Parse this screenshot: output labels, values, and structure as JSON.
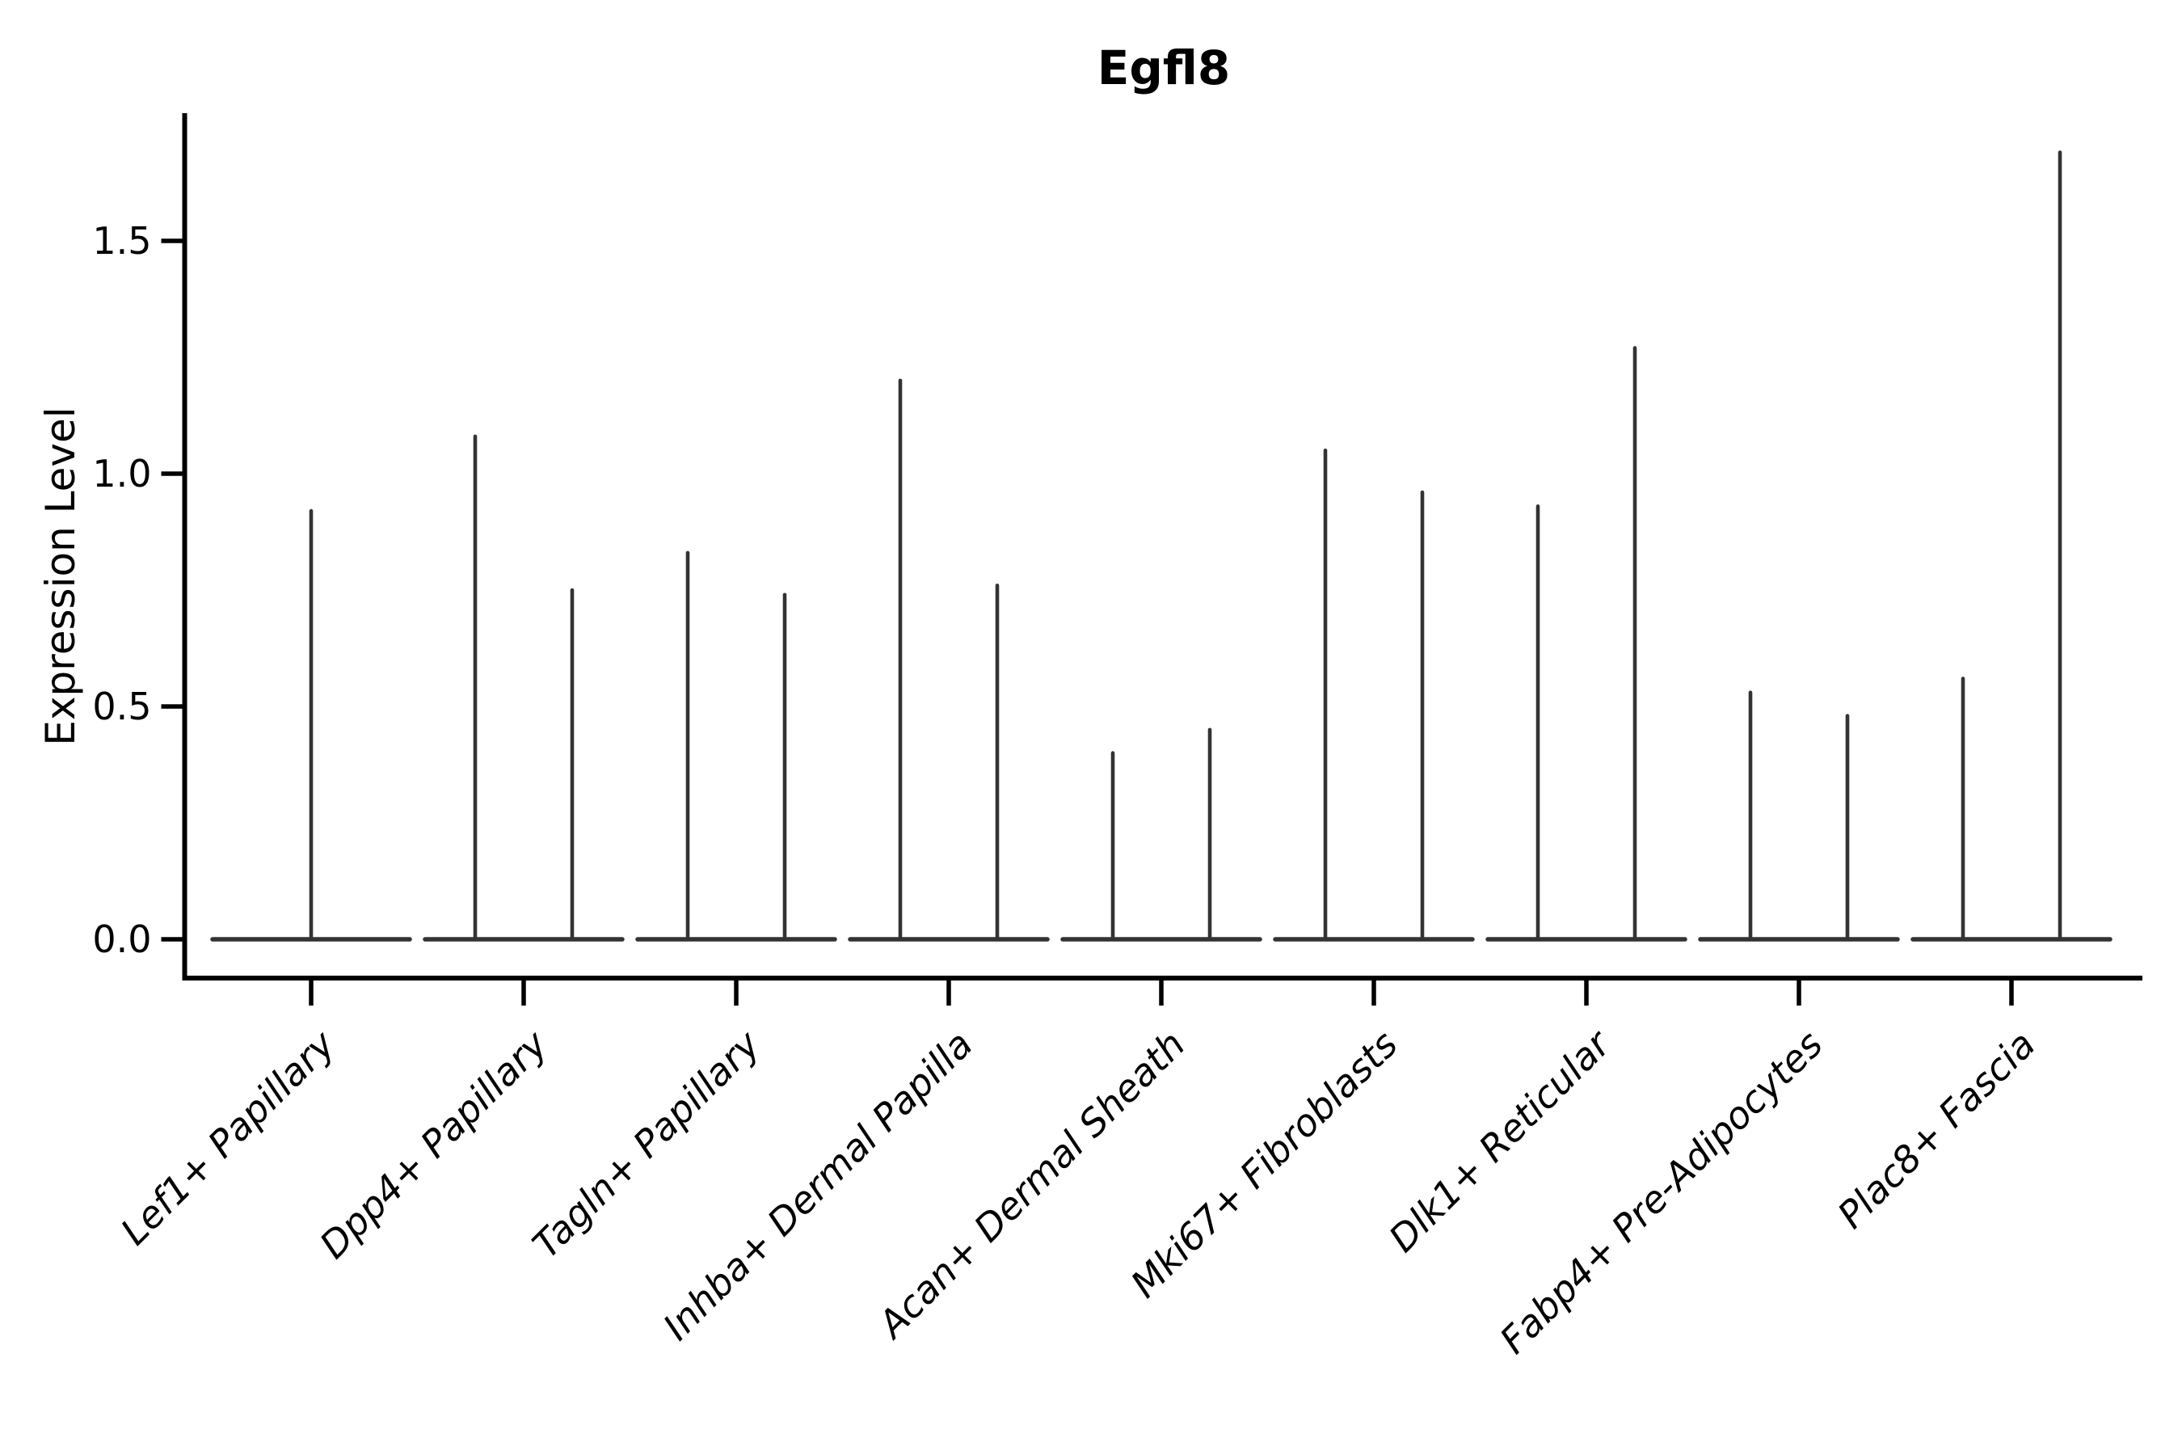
{
  "chart_data": {
    "type": "violin",
    "title": "Egfl8",
    "ylabel": "Expression Level",
    "xlabel": "",
    "ytick_labels": [
      "0.0",
      "0.5",
      "1.0",
      "1.5"
    ],
    "ytick_values": [
      0.0,
      0.5,
      1.0,
      1.5
    ],
    "ylim": [
      -0.08,
      1.77
    ],
    "grid": false,
    "legend_position": "none",
    "baseline_value": 0.0,
    "categories": [
      "Lef1+ Papillary",
      "Dpp4+ Papillary",
      "Tagln+ Papillary",
      "Inhba+ Dermal Papilla",
      "Acan+ Dermal Sheath",
      "Mki67+ Fibroblasts",
      "Dlk1+ Reticular",
      "Fabp4+ Pre-Adipocytes",
      "Plac8+ Fascia"
    ],
    "violins": [
      {
        "category": "Lef1+ Papillary",
        "spikes": [
          {
            "position": "center",
            "max": 0.92
          }
        ]
      },
      {
        "category": "Dpp4+ Papillary",
        "spikes": [
          {
            "position": "left",
            "max": 1.08
          },
          {
            "position": "right",
            "max": 0.75
          }
        ]
      },
      {
        "category": "Tagln+ Papillary",
        "spikes": [
          {
            "position": "left",
            "max": 0.83
          },
          {
            "position": "right",
            "max": 0.74
          }
        ]
      },
      {
        "category": "Inhba+ Dermal Papilla",
        "spikes": [
          {
            "position": "left",
            "max": 1.2
          },
          {
            "position": "right",
            "max": 0.76
          }
        ]
      },
      {
        "category": "Acan+ Dermal Sheath",
        "spikes": [
          {
            "position": "left",
            "max": 0.4
          },
          {
            "position": "right",
            "max": 0.45
          }
        ]
      },
      {
        "category": "Mki67+ Fibroblasts",
        "spikes": [
          {
            "position": "left",
            "max": 1.05
          },
          {
            "position": "right",
            "max": 0.96
          }
        ]
      },
      {
        "category": "Dlk1+ Reticular",
        "spikes": [
          {
            "position": "left",
            "max": 0.93
          },
          {
            "position": "right",
            "max": 1.27
          }
        ]
      },
      {
        "category": "Fabp4+ Pre-Adipocytes",
        "spikes": [
          {
            "position": "left",
            "max": 0.53
          },
          {
            "position": "right",
            "max": 0.48
          }
        ]
      },
      {
        "category": "Plac8+ Fascia",
        "spikes": [
          {
            "position": "left",
            "max": 0.56
          },
          {
            "position": "right",
            "max": 1.69
          }
        ]
      }
    ],
    "colors": {
      "violin_line": "#333333",
      "axis": "#000000",
      "text": "#000000",
      "background": "#ffffff"
    }
  }
}
